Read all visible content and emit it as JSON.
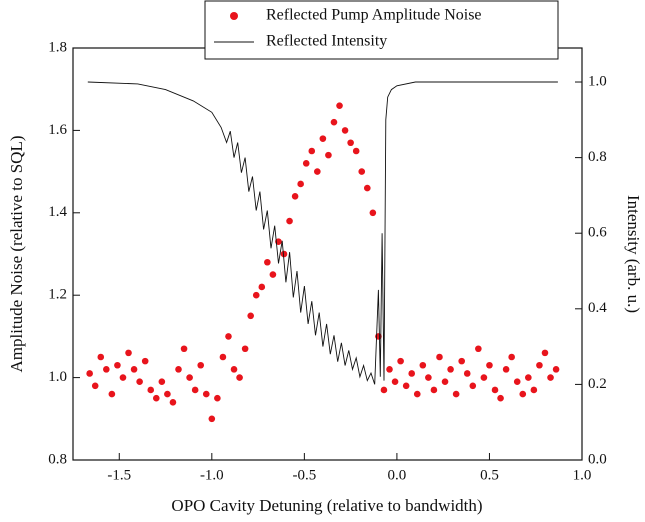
{
  "chart_data": {
    "type": "scatter-line",
    "x_label": "OPO Cavity Detuning (relative to bandwidth)",
    "y_label": "Amplitude Noise (relative to SQL)",
    "y2_label": "Intensity (arb. u.)",
    "xlim": [
      -1.75,
      1.0
    ],
    "xticks": [
      -1.5,
      {
        "value": -1.0,
        "label": "-1.0"
      },
      -0.5,
      {
        "value": 0.0,
        "label": "0.0"
      },
      0.5,
      {
        "value": 1.0,
        "label": "1.0"
      }
    ],
    "ylim": [
      0.8,
      1.8
    ],
    "yticks": [
      0.8,
      {
        "value": 1.0,
        "label": "1.0"
      },
      1.2,
      1.4,
      1.6,
      1.8
    ],
    "y2lim": [
      0,
      1.09
    ],
    "y2ticks": [
      {
        "value": 0,
        "label": "0.0"
      },
      0.2,
      0.4,
      0.6,
      0.8,
      {
        "value": 1.0,
        "label": "1.0"
      }
    ],
    "series": [
      {
        "name": "Reflected Pump Amplitude Noise",
        "color": "#e8141c",
        "type": "scatter",
        "x": [
          -1.66,
          -1.63,
          -1.6,
          -1.57,
          -1.54,
          -1.51,
          -1.48,
          -1.45,
          -1.42,
          -1.39,
          -1.36,
          -1.33,
          -1.3,
          -1.27,
          -1.24,
          -1.21,
          -1.18,
          -1.15,
          -1.12,
          -1.09,
          -1.06,
          -1.03,
          -1.0,
          -0.97,
          -0.94,
          -0.91,
          -0.88,
          -0.85,
          -0.82,
          -0.79,
          -0.76,
          -0.73,
          -0.7,
          -0.67,
          -0.64,
          -0.61,
          -0.58,
          -0.55,
          -0.52,
          -0.49,
          -0.46,
          -0.43,
          -0.4,
          -0.37,
          -0.34,
          -0.31,
          -0.28,
          -0.25,
          -0.22,
          -0.19,
          -0.16,
          -0.13,
          -0.1,
          -0.07,
          -0.04,
          -0.01,
          0.02,
          0.05,
          0.08,
          0.11,
          0.14,
          0.17,
          0.2,
          0.23,
          0.26,
          0.29,
          0.32,
          0.35,
          0.38,
          0.41,
          0.44,
          0.47,
          0.5,
          0.53,
          0.56,
          0.59,
          0.62,
          0.65,
          0.68,
          0.71,
          0.74,
          0.77,
          0.8,
          0.83,
          0.86
        ],
        "values": [
          1.01,
          0.98,
          1.05,
          1.02,
          0.96,
          1.03,
          1.0,
          1.06,
          1.02,
          0.99,
          1.04,
          0.97,
          0.95,
          0.99,
          0.96,
          0.94,
          1.02,
          1.07,
          1.0,
          0.97,
          1.03,
          0.96,
          0.9,
          0.95,
          1.05,
          1.1,
          1.02,
          1.0,
          1.07,
          1.15,
          1.2,
          1.22,
          1.28,
          1.25,
          1.33,
          1.3,
          1.38,
          1.44,
          1.47,
          1.52,
          1.55,
          1.5,
          1.58,
          1.54,
          1.62,
          1.66,
          1.6,
          1.57,
          1.55,
          1.5,
          1.46,
          1.4,
          1.1,
          0.97,
          1.02,
          0.99,
          1.04,
          0.98,
          1.01,
          0.96,
          1.03,
          1.0,
          0.97,
          1.05,
          0.99,
          1.02,
          0.96,
          1.04,
          1.01,
          0.98,
          1.07,
          1.0,
          1.03,
          0.97,
          0.95,
          1.02,
          1.05,
          0.99,
          0.96,
          1.0,
          0.97,
          1.03,
          1.06,
          1.0,
          1.02
        ]
      },
      {
        "name": "Reflected Intensity",
        "color": "#111111",
        "type": "line",
        "axis": "y2",
        "x": [
          -1.67,
          -1.4,
          -1.25,
          -1.1,
          -1.0,
          -0.95,
          -0.92,
          -0.9,
          -0.88,
          -0.86,
          -0.84,
          -0.82,
          -0.8,
          -0.78,
          -0.76,
          -0.74,
          -0.72,
          -0.7,
          -0.68,
          -0.66,
          -0.64,
          -0.62,
          -0.6,
          -0.58,
          -0.56,
          -0.54,
          -0.52,
          -0.5,
          -0.48,
          -0.46,
          -0.44,
          -0.42,
          -0.4,
          -0.38,
          -0.36,
          -0.34,
          -0.32,
          -0.3,
          -0.28,
          -0.26,
          -0.24,
          -0.22,
          -0.2,
          -0.18,
          -0.16,
          -0.14,
          -0.12,
          -0.1,
          -0.09,
          -0.08,
          -0.07,
          -0.06,
          -0.05,
          -0.03,
          0.0,
          0.1,
          0.3,
          0.6,
          0.87
        ],
        "values": [
          1.0,
          0.995,
          0.98,
          0.95,
          0.92,
          0.88,
          0.84,
          0.87,
          0.8,
          0.84,
          0.76,
          0.8,
          0.71,
          0.75,
          0.66,
          0.71,
          0.61,
          0.66,
          0.56,
          0.62,
          0.52,
          0.58,
          0.47,
          0.55,
          0.43,
          0.5,
          0.39,
          0.46,
          0.36,
          0.42,
          0.33,
          0.39,
          0.3,
          0.36,
          0.28,
          0.33,
          0.26,
          0.31,
          0.25,
          0.29,
          0.24,
          0.27,
          0.22,
          0.25,
          0.21,
          0.23,
          0.2,
          0.45,
          0.22,
          0.6,
          0.21,
          0.9,
          0.96,
          0.98,
          0.99,
          1.0,
          1.0,
          1.0,
          1.0
        ]
      }
    ]
  }
}
